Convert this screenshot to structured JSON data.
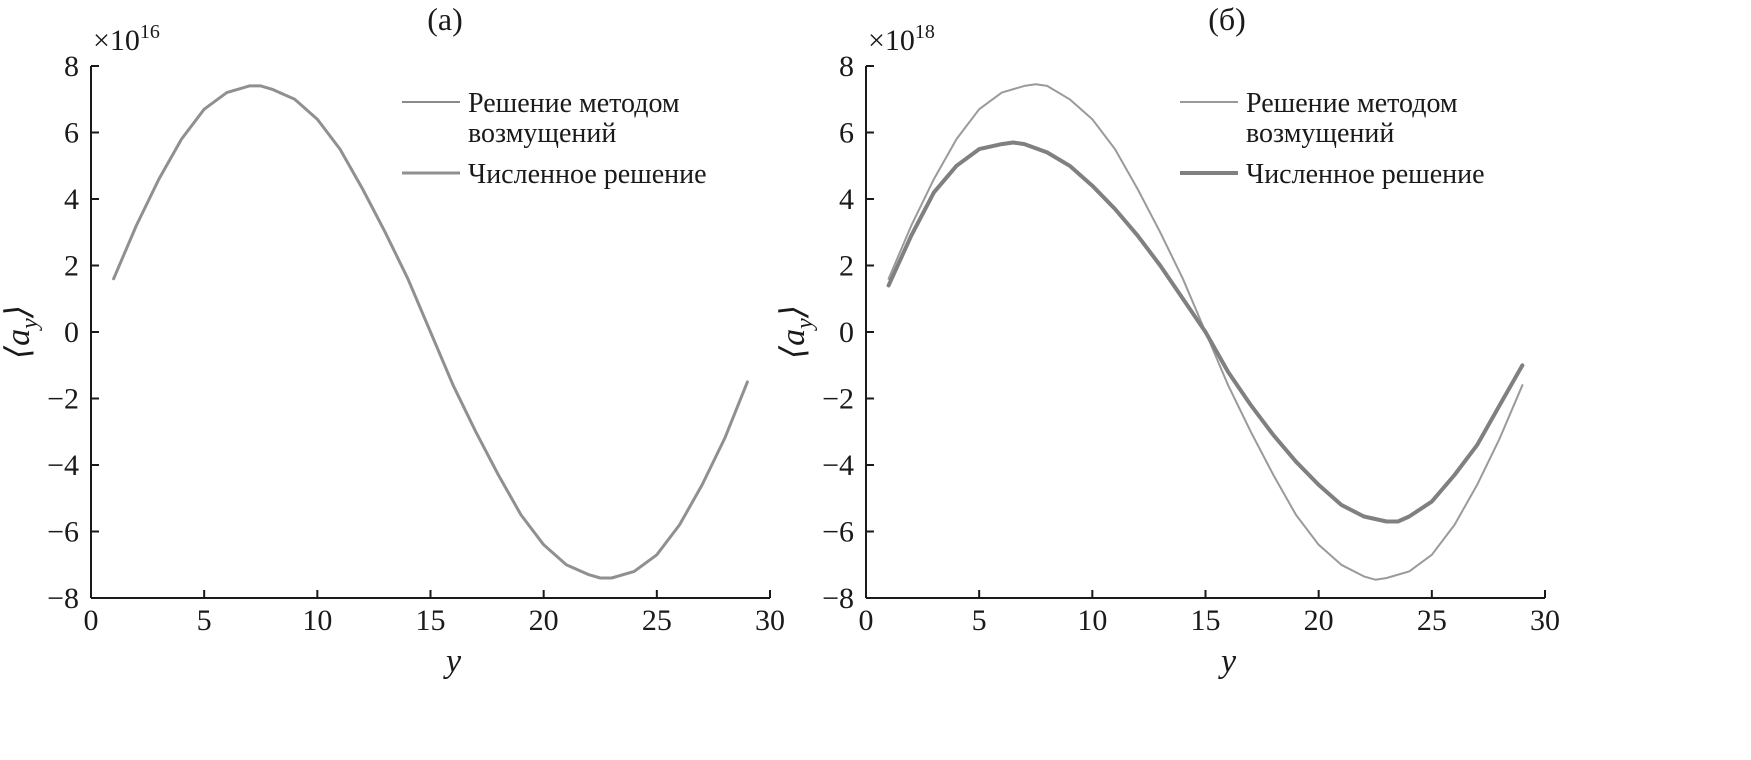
{
  "chart_data": [
    {
      "panel": "(a)",
      "type": "line",
      "xlabel": "y",
      "ylabel": "⟨a",
      "ylabel_sub": "y",
      "ylabel_close": "⟩",
      "multiplier_base": "×10",
      "multiplier_exp": "16",
      "xlim": [
        0,
        30
      ],
      "ylim": [
        -8,
        8
      ],
      "xticks": [
        "0",
        "5",
        "10",
        "15",
        "20",
        "25",
        "30"
      ],
      "yticks": [
        "8",
        "6",
        "4",
        "2",
        "0",
        "−2",
        "−4",
        "−6",
        "−8"
      ],
      "legend_position": "top-right",
      "series": [
        {
          "name": "Решение методом возмущений",
          "name_line1": "Решение методом",
          "name_line2": "возмущений",
          "color": "#8a8a8a",
          "width": 2,
          "x": [
            1,
            2,
            3,
            4,
            5,
            6,
            7,
            7.5,
            8,
            9,
            10,
            11,
            12,
            13,
            14,
            15,
            16,
            17,
            18,
            19,
            20,
            21,
            22,
            22.5,
            23,
            24,
            25,
            26,
            27,
            28,
            29
          ],
          "y": [
            1.6,
            3.2,
            4.6,
            5.8,
            6.7,
            7.2,
            7.4,
            7.4,
            7.3,
            7.0,
            6.4,
            5.5,
            4.3,
            3.0,
            1.6,
            0.0,
            -1.6,
            -3.0,
            -4.3,
            -5.5,
            -6.4,
            -7.0,
            -7.3,
            -7.4,
            -7.4,
            -7.2,
            -6.7,
            -5.8,
            -4.6,
            -3.2,
            -1.5
          ]
        },
        {
          "name": "Численное решение",
          "color": "#909090",
          "width": 3,
          "x": [
            1,
            2,
            3,
            4,
            5,
            6,
            7,
            7.5,
            8,
            9,
            10,
            11,
            12,
            13,
            14,
            15,
            16,
            17,
            18,
            19,
            20,
            21,
            22,
            22.5,
            23,
            24,
            25,
            26,
            27,
            28,
            29
          ],
          "y": [
            1.6,
            3.2,
            4.6,
            5.8,
            6.7,
            7.2,
            7.4,
            7.4,
            7.3,
            7.0,
            6.4,
            5.5,
            4.3,
            3.0,
            1.6,
            0.0,
            -1.6,
            -3.0,
            -4.3,
            -5.5,
            -6.4,
            -7.0,
            -7.3,
            -7.4,
            -7.4,
            -7.2,
            -6.7,
            -5.8,
            -4.6,
            -3.2,
            -1.5
          ]
        }
      ]
    },
    {
      "panel": "(б)",
      "type": "line",
      "xlabel": "y",
      "ylabel": "⟨a",
      "ylabel_sub": "y",
      "ylabel_close": "⟩",
      "multiplier_base": "×10",
      "multiplier_exp": "18",
      "xlim": [
        0,
        30
      ],
      "ylim": [
        -8,
        8
      ],
      "xticks": [
        "0",
        "5",
        "10",
        "15",
        "20",
        "25",
        "30"
      ],
      "yticks": [
        "8",
        "6",
        "4",
        "2",
        "0",
        "−2",
        "−4",
        "−6",
        "−8"
      ],
      "legend_position": "top-right",
      "series": [
        {
          "name": "Решение методом возмущений",
          "name_line1": "Решение методом",
          "name_line2": "возмущений",
          "color": "#9a9a9a",
          "width": 2,
          "x": [
            1,
            2,
            3,
            4,
            5,
            6,
            7,
            7.5,
            8,
            9,
            10,
            11,
            12,
            13,
            14,
            15,
            16,
            17,
            18,
            19,
            20,
            21,
            22,
            22.5,
            23,
            24,
            25,
            26,
            27,
            28,
            29
          ],
          "y": [
            1.6,
            3.2,
            4.6,
            5.8,
            6.7,
            7.2,
            7.4,
            7.45,
            7.4,
            7.0,
            6.4,
            5.5,
            4.3,
            3.0,
            1.6,
            0.0,
            -1.6,
            -3.0,
            -4.3,
            -5.5,
            -6.4,
            -7.0,
            -7.35,
            -7.45,
            -7.4,
            -7.2,
            -6.7,
            -5.8,
            -4.6,
            -3.2,
            -1.6
          ]
        },
        {
          "name": "Численное решение",
          "color": "#808080",
          "width": 4,
          "x": [
            1,
            2,
            3,
            4,
            5,
            6,
            6.5,
            7,
            8,
            9,
            10,
            11,
            12,
            13,
            14,
            15,
            16,
            17,
            18,
            19,
            20,
            21,
            22,
            23,
            23.5,
            24,
            25,
            26,
            27,
            28,
            29
          ],
          "y": [
            1.4,
            2.9,
            4.2,
            5.0,
            5.5,
            5.65,
            5.7,
            5.65,
            5.4,
            5.0,
            4.4,
            3.7,
            2.9,
            2.0,
            1.0,
            0.0,
            -1.2,
            -2.2,
            -3.1,
            -3.9,
            -4.6,
            -5.2,
            -5.55,
            -5.7,
            -5.7,
            -5.55,
            -5.1,
            -4.3,
            -3.4,
            -2.2,
            -1.0
          ]
        }
      ]
    }
  ]
}
